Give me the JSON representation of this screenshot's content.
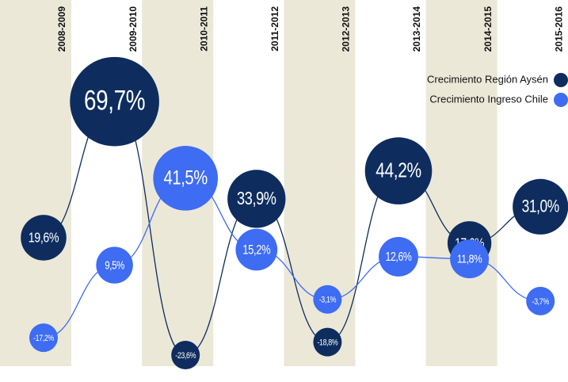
{
  "chart_data": {
    "type": "bubble-line",
    "categories": [
      "2008-2009",
      "2009-2010",
      "2010-2011",
      "2011-2012",
      "2012-2013",
      "2013-2014",
      "2014-2015",
      "2015-2016"
    ],
    "series": [
      {
        "name": "Crecimiento Región Aysén",
        "color": "#0e2d5e",
        "values": [
          19.6,
          69.7,
          -23.6,
          33.9,
          -18.8,
          44.2,
          17.6,
          31.0
        ],
        "value_labels": [
          "19,6%",
          "69,7%",
          "-23,6%",
          "33,9%",
          "-18,8%",
          "44,2%",
          "17,6%",
          "31,0%"
        ]
      },
      {
        "name": "Crecimiento Ingreso Chile",
        "color": "#3e6cf2",
        "values": [
          -17.2,
          9.5,
          41.5,
          15.2,
          -3.1,
          12.6,
          11.8,
          -3.7
        ],
        "value_labels": [
          "-17,2%",
          "9,5%",
          "41,5%",
          "15,2%",
          "-3,1%",
          "12,6%",
          "11,8%",
          "-3,7%"
        ]
      }
    ],
    "ylim": [
      -30,
      75
    ]
  }
}
